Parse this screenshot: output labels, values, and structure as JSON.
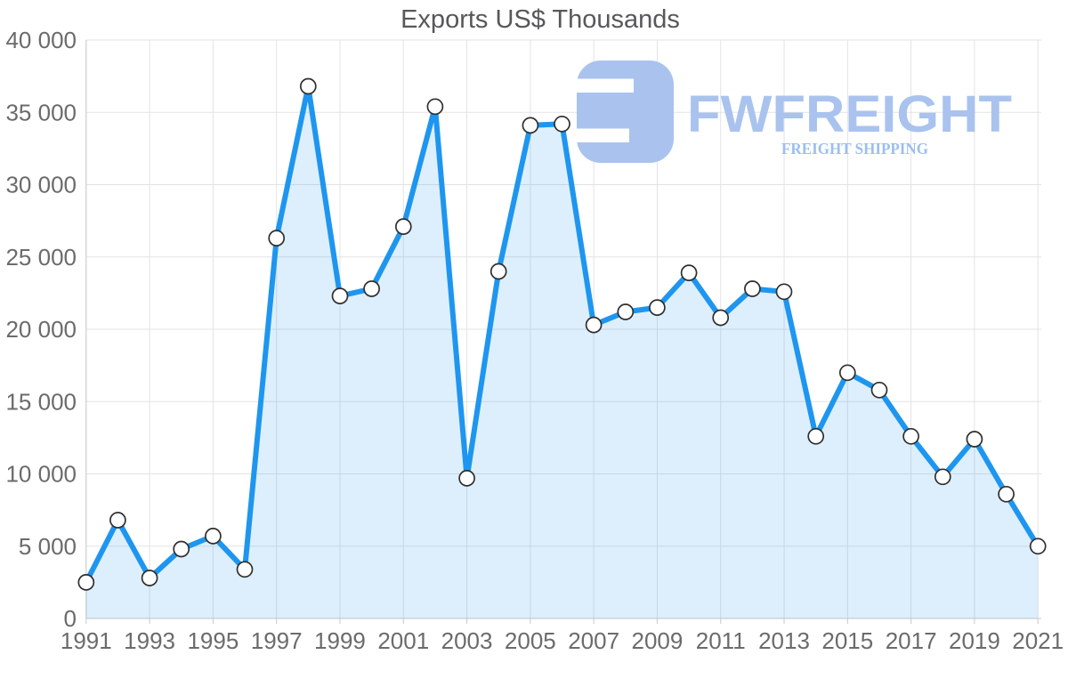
{
  "logo": {
    "name": "FWFREIGHT",
    "tagline": "FREIGHT SHIPPING",
    "name_color": "#a9c3ee",
    "tagline_color": "#9cbef1",
    "icon_color": "#a9c3ee"
  },
  "chart_data": {
    "type": "area",
    "title": "Exports US$ Thousands",
    "xlabel": "",
    "ylabel": "",
    "x": [
      "1991",
      "1992",
      "1993",
      "1994",
      "1995",
      "1996",
      "1997",
      "1998",
      "1999",
      "2000",
      "2001",
      "2002",
      "2003",
      "2004",
      "2005",
      "2006",
      "2007",
      "2008",
      "2009",
      "2010",
      "2011",
      "2012",
      "2013",
      "2014",
      "2015",
      "2016",
      "2017",
      "2018",
      "2019",
      "2020",
      "2021"
    ],
    "series": [
      {
        "name": "Exports US$ Thousands",
        "values": [
          2500,
          6800,
          2800,
          4800,
          5700,
          3400,
          26300,
          36800,
          22300,
          22800,
          27100,
          35400,
          9700,
          24000,
          34100,
          34200,
          20300,
          21200,
          21500,
          23900,
          20800,
          22800,
          22600,
          12600,
          17000,
          15800,
          12600,
          9800,
          12400,
          8600,
          5000
        ]
      }
    ],
    "ylim": [
      0,
      40000
    ],
    "y_ticks": [
      0,
      5000,
      10000,
      15000,
      20000,
      25000,
      30000,
      35000,
      40000
    ],
    "y_tick_labels": [
      "0",
      "5 000",
      "10 000",
      "15 000",
      "20 000",
      "25 000",
      "30 000",
      "35 000",
      "40 000"
    ],
    "x_tick_labels": [
      "1991",
      "1993",
      "1995",
      "1997",
      "1999",
      "2001",
      "2003",
      "2005",
      "2007",
      "2009",
      "2011",
      "2013",
      "2015",
      "2017",
      "2019",
      "2021"
    ],
    "grid": true,
    "legend": false,
    "colors": {
      "line": "#1e96f0",
      "fill": "rgba(30,150,240,0.15)",
      "marker_fill": "#ffffff",
      "marker_stroke": "#2f2f2f",
      "grid": "#e3e3e3",
      "axis": "#c9c9c9",
      "label": "#6b6b6b",
      "title": "#58585a"
    }
  }
}
